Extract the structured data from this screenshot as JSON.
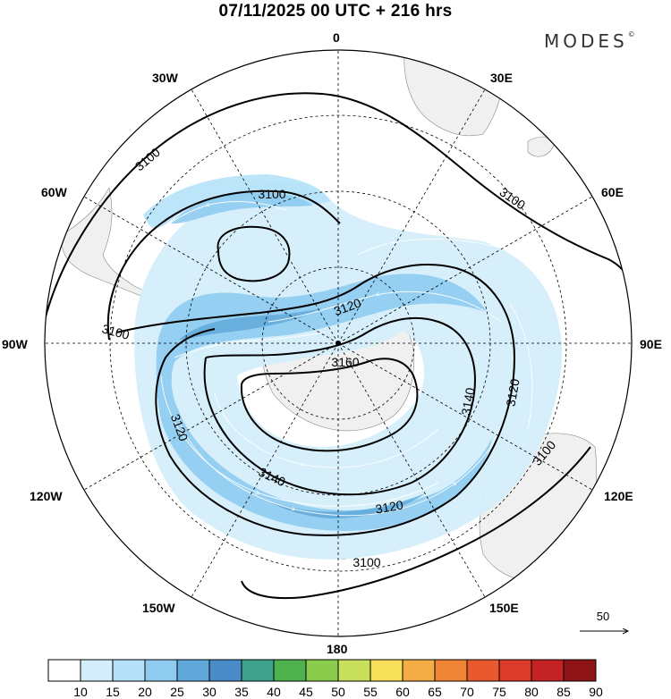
{
  "header": {
    "title": "07/11/2025  00 UTC  + 216 hrs",
    "logo": "MODES",
    "logo_mark": "©"
  },
  "longitude_labels": {
    "top": "0",
    "bottom": "180",
    "left": "90W",
    "right": "90E",
    "nw1": "30W",
    "nw2": "60W",
    "ne1": "30E",
    "ne2": "60E",
    "sw1": "120W",
    "sw2": "150W",
    "se1": "120E",
    "se2": "150E"
  },
  "contours": {
    "labels": [
      "3100",
      "3100",
      "3100",
      "3100",
      "3100",
      "3120",
      "3120",
      "3120",
      "3120",
      "3140",
      "3140",
      "3160"
    ]
  },
  "reference_vector": {
    "value": "50"
  },
  "colorbar": {
    "ticks": [
      "10",
      "15",
      "20",
      "25",
      "30",
      "35",
      "40",
      "45",
      "50",
      "55",
      "60",
      "65",
      "70",
      "75",
      "80",
      "85",
      "90"
    ],
    "colors": [
      "#ffffff",
      "#d4eefb",
      "#b5e2f8",
      "#8ecbef",
      "#62a9db",
      "#4a8cc7",
      "#3ea18a",
      "#4eb24f",
      "#8ccc4c",
      "#c8e05b",
      "#f7e05a",
      "#f4ad45",
      "#ef8535",
      "#e85a2d",
      "#dc3a2a",
      "#c32325",
      "#8f1416"
    ]
  }
}
